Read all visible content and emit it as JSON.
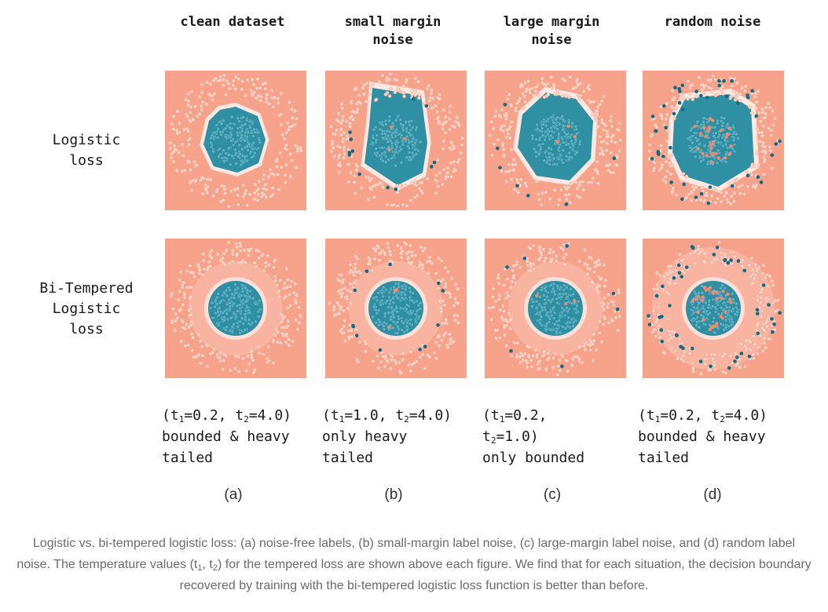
{
  "columns": [
    {
      "title": "clean dataset"
    },
    {
      "title": "small margin\nnoise"
    },
    {
      "title": "large margin\nnoise"
    },
    {
      "title": "random noise"
    }
  ],
  "rows": [
    {
      "label": "Logistic\nloss"
    },
    {
      "label": "Bi-Tempered\nLogistic\nloss"
    }
  ],
  "params": [
    {
      "t1": "0.2",
      "t2": "4.0",
      "line1": "bounded & heavy",
      "line2": "tailed"
    },
    {
      "t1": "1.0",
      "t2": "4.0",
      "line1": "only heavy",
      "line2": "tailed"
    },
    {
      "t1": "0.2",
      "t2": "1.0",
      "line1": "only bounded",
      "line2": ""
    },
    {
      "t1": "0.2",
      "t2": "4.0",
      "line1": "bounded & heavy",
      "line2": "tailed"
    }
  ],
  "letters": [
    "(a)",
    "(b)",
    "(c)",
    "(d)"
  ],
  "caption": {
    "part1": "Logistic vs. bi-tempered logistic loss: (a) noise-free labels, (b) small-margin label noise, (c) large-margin label noise, and (d) random label noise. The temperature values (t",
    "sub1": "1",
    "mid": ", t",
    "sub2": "2",
    "part2": ") for the tempered loss are shown above each figure. We find that for each situation, the decision boundary recovered by training with the bi-tempered logistic loss function is better than before."
  },
  "colors": {
    "background_region": "#f7a38c",
    "inner_region": "#2f8fa3",
    "ring_point": "#fbd5c8",
    "inner_point": "#5ab3c4",
    "noise_point": "#0f6a85"
  }
}
